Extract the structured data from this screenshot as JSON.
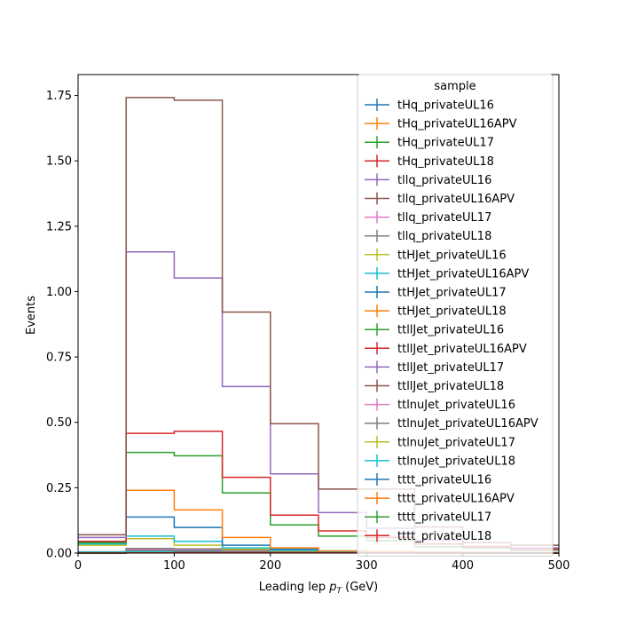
{
  "chart_data": {
    "type": "step-histogram",
    "xlabel_main": "Leading lep ",
    "xlabel_math": "p",
    "xlabel_sub": "T",
    "xlabel_unit": " (GeV)",
    "ylabel": "Events",
    "xlim": [
      0,
      500
    ],
    "ylim": [
      0,
      1.83
    ],
    "x_ticks": [
      "0",
      "100",
      "200",
      "300",
      "400",
      "500"
    ],
    "y_ticks": [
      "0.00",
      "0.25",
      "0.50",
      "0.75",
      "1.00",
      "1.25",
      "1.50",
      "1.75"
    ],
    "bin_edges": [
      0,
      50,
      100,
      150,
      200,
      250,
      300,
      350,
      400,
      450,
      500
    ],
    "grid": false,
    "legend": {
      "title": "sample",
      "placement": "upper right"
    },
    "series": [
      {
        "name": "tHq_privateUL16",
        "color": "#1f77b4",
        "values": [
          0.002,
          0.006,
          0.005,
          0.004,
          0.003,
          0.002,
          0.001,
          0.001,
          0.001,
          0.001
        ]
      },
      {
        "name": "tHq_privateUL16APV",
        "color": "#ff7f0e",
        "values": [
          0.002,
          0.006,
          0.005,
          0.004,
          0.003,
          0.002,
          0.001,
          0.001,
          0.001,
          0.001
        ]
      },
      {
        "name": "tHq_privateUL17",
        "color": "#2ca02c",
        "values": [
          0.003,
          0.008,
          0.007,
          0.005,
          0.004,
          0.002,
          0.002,
          0.001,
          0.001,
          0.001
        ]
      },
      {
        "name": "tHq_privateUL18",
        "color": "#d62728",
        "values": [
          0.004,
          0.01,
          0.009,
          0.006,
          0.004,
          0.003,
          0.002,
          0.001,
          0.001,
          0.001
        ]
      },
      {
        "name": "tllq_privateUL16",
        "color": "#9467bd",
        "values": [
          0.003,
          0.012,
          0.011,
          0.008,
          0.005,
          0.004,
          0.003,
          0.002,
          0.002,
          0.001
        ]
      },
      {
        "name": "tllq_privateUL16APV",
        "color": "#8c564b",
        "values": [
          0.003,
          0.011,
          0.01,
          0.007,
          0.005,
          0.004,
          0.003,
          0.002,
          0.002,
          0.001
        ]
      },
      {
        "name": "tllq_privateUL17",
        "color": "#e377c2",
        "values": [
          0.004,
          0.014,
          0.013,
          0.009,
          0.006,
          0.005,
          0.003,
          0.002,
          0.002,
          0.001
        ]
      },
      {
        "name": "tllq_privateUL18",
        "color": "#7f7f7f",
        "values": [
          0.005,
          0.018,
          0.016,
          0.011,
          0.008,
          0.006,
          0.004,
          0.003,
          0.002,
          0.002
        ]
      },
      {
        "name": "ttHJet_privateUL16",
        "color": "#bcbd22",
        "values": [
          0.03,
          0.055,
          0.03,
          0.015,
          0.008,
          0.004,
          0.002,
          0.001,
          0.001,
          0.001
        ]
      },
      {
        "name": "ttHJet_privateUL16APV",
        "color": "#17becf",
        "values": [
          0.035,
          0.065,
          0.045,
          0.02,
          0.01,
          0.005,
          0.003,
          0.002,
          0.001,
          0.001
        ]
      },
      {
        "name": "ttHJet_privateUL17",
        "color": "#1f77b4",
        "values": [
          0.045,
          0.138,
          0.098,
          0.03,
          0.015,
          0.008,
          0.005,
          0.003,
          0.002,
          0.001
        ]
      },
      {
        "name": "ttHJet_privateUL18",
        "color": "#ff7f0e",
        "values": [
          0.04,
          0.24,
          0.165,
          0.06,
          0.02,
          0.008,
          0.005,
          0.003,
          0.002,
          0.001
        ]
      },
      {
        "name": "ttllJet_privateUL16",
        "color": "#2ca02c",
        "values": [
          0.04,
          0.385,
          0.372,
          0.23,
          0.108,
          0.065,
          0.048,
          0.025,
          0.02,
          0.012
        ]
      },
      {
        "name": "ttllJet_privateUL16APV",
        "color": "#d62728",
        "values": [
          0.045,
          0.458,
          0.466,
          0.29,
          0.145,
          0.085,
          0.06,
          0.035,
          0.025,
          0.015
        ]
      },
      {
        "name": "ttllJet_privateUL17",
        "color": "#9467bd",
        "values": [
          0.06,
          1.152,
          1.052,
          0.637,
          0.303,
          0.155,
          0.095,
          0.05,
          0.04,
          0.02
        ]
      },
      {
        "name": "ttllJet_privateUL18",
        "color": "#8c564b",
        "values": [
          0.07,
          1.742,
          1.732,
          0.922,
          0.495,
          0.245,
          0.245,
          0.1,
          0.04,
          0.03
        ]
      },
      {
        "name": "ttlnuJet_privateUL16",
        "color": "#e377c2",
        "values": [
          0.002,
          0.004,
          0.003,
          0.002,
          0.001,
          0.001,
          0.001,
          0.0,
          0.0,
          0.0
        ]
      },
      {
        "name": "ttlnuJet_privateUL16APV",
        "color": "#7f7f7f",
        "values": [
          0.002,
          0.004,
          0.003,
          0.002,
          0.001,
          0.001,
          0.001,
          0.0,
          0.0,
          0.0
        ]
      },
      {
        "name": "ttlnuJet_privateUL17",
        "color": "#bcbd22",
        "values": [
          0.003,
          0.005,
          0.004,
          0.003,
          0.002,
          0.001,
          0.001,
          0.0,
          0.0,
          0.0
        ]
      },
      {
        "name": "ttlnuJet_privateUL18",
        "color": "#17becf",
        "values": [
          0.004,
          0.007,
          0.006,
          0.004,
          0.002,
          0.001,
          0.001,
          0.001,
          0.0,
          0.0
        ]
      },
      {
        "name": "tttt_privateUL16",
        "color": "#1f77b4",
        "values": [
          0.0,
          0.001,
          0.002,
          0.002,
          0.001,
          0.001,
          0.001,
          0.0,
          0.0,
          0.0
        ]
      },
      {
        "name": "tttt_privateUL16APV",
        "color": "#ff7f0e",
        "values": [
          0.0,
          0.001,
          0.002,
          0.002,
          0.001,
          0.001,
          0.001,
          0.0,
          0.0,
          0.0
        ]
      },
      {
        "name": "tttt_privateUL17",
        "color": "#2ca02c",
        "values": [
          0.0,
          0.001,
          0.002,
          0.002,
          0.002,
          0.001,
          0.001,
          0.001,
          0.0,
          0.0
        ]
      },
      {
        "name": "tttt_privateUL18",
        "color": "#d62728",
        "values": [
          0.0,
          0.001,
          0.002,
          0.002,
          0.002,
          0.001,
          0.001,
          0.001,
          0.0,
          0.0
        ]
      }
    ]
  }
}
